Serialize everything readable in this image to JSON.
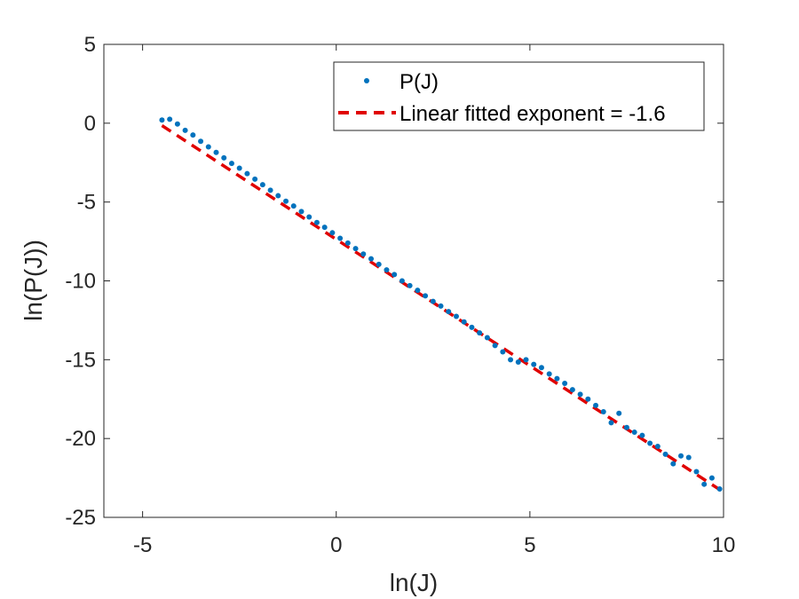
{
  "chart_data": {
    "type": "scatter",
    "xlabel": "ln(J)",
    "ylabel": "ln(P(J))",
    "xlim": [
      -6,
      10
    ],
    "ylim": [
      -25,
      5
    ],
    "xticks": [
      -5,
      0,
      5,
      10
    ],
    "yticks": [
      5,
      0,
      -5,
      -10,
      -15,
      -20,
      -25
    ],
    "grid": false,
    "legend_position": "top-right",
    "series": [
      {
        "name": "P(J)",
        "style": "dots",
        "color": "#0072BD",
        "x": [
          -4.5,
          -4.3,
          -4.1,
          -3.9,
          -3.7,
          -3.5,
          -3.3,
          -3.1,
          -2.9,
          -2.7,
          -2.5,
          -2.3,
          -2.1,
          -1.9,
          -1.7,
          -1.5,
          -1.3,
          -1.1,
          -0.9,
          -0.7,
          -0.5,
          -0.3,
          -0.1,
          0.1,
          0.3,
          0.5,
          0.7,
          0.9,
          1.1,
          1.3,
          1.5,
          1.7,
          1.9,
          2.1,
          2.3,
          2.5,
          2.7,
          2.9,
          3.1,
          3.3,
          3.5,
          3.7,
          3.9,
          4.1,
          4.3,
          4.5,
          4.7,
          4.9,
          5.1,
          5.3,
          5.5,
          5.7,
          5.9,
          6.1,
          6.3,
          6.5,
          6.7,
          6.9,
          7.1,
          7.3,
          7.5,
          7.7,
          7.9,
          8.1,
          8.3,
          8.5,
          8.7,
          8.9,
          9.1,
          9.3,
          9.5,
          9.7,
          9.9
        ],
        "y": [
          0.2,
          0.25,
          -0.05,
          -0.45,
          -0.75,
          -1.15,
          -1.5,
          -1.85,
          -2.2,
          -2.55,
          -2.85,
          -3.2,
          -3.55,
          -3.9,
          -4.25,
          -4.6,
          -4.95,
          -5.25,
          -5.6,
          -5.95,
          -6.3,
          -6.6,
          -6.95,
          -7.3,
          -7.6,
          -7.95,
          -8.3,
          -8.6,
          -8.95,
          -9.3,
          -9.6,
          -10.0,
          -10.3,
          -10.6,
          -10.95,
          -11.3,
          -11.6,
          -11.95,
          -12.25,
          -12.6,
          -12.95,
          -13.3,
          -13.6,
          -14.1,
          -14.5,
          -15.0,
          -15.15,
          -15.0,
          -15.3,
          -15.5,
          -15.9,
          -16.2,
          -16.5,
          -16.9,
          -17.2,
          -17.5,
          -17.9,
          -18.3,
          -19.0,
          -18.4,
          -19.3,
          -19.6,
          -19.8,
          -20.3,
          -20.5,
          -21.0,
          -21.6,
          -21.1,
          -21.2,
          -22.1,
          -22.9,
          -22.5,
          -23.2
        ]
      },
      {
        "name": "Linear fitted exponent = -1.6",
        "style": "dashed-line",
        "color": "#E00000",
        "x": [
          -4.5,
          10.0
        ],
        "y": [
          -0.15,
          -23.4
        ]
      }
    ]
  }
}
